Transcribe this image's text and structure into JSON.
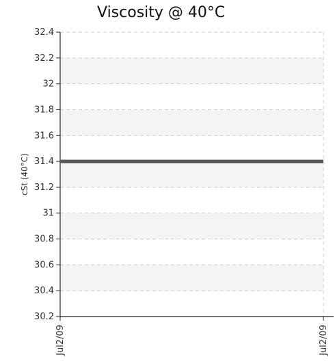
{
  "chart_data": {
    "type": "line",
    "title": "Viscosity @ 40°C",
    "xlabel": "",
    "ylabel": "cSt (40°C)",
    "ylim": [
      30.2,
      32.4
    ],
    "y_ticks": [
      "32.4",
      "32.2",
      "32",
      "31.8",
      "31.6",
      "31.4",
      "31.2",
      "31",
      "30.8",
      "30.6",
      "30.4",
      "30.2"
    ],
    "x_ticks": [
      "Jul2/09",
      "Jul2/09"
    ],
    "grid": true,
    "series": [
      {
        "x": [
          "Jul2/09",
          "Jul2/09"
        ],
        "values": [
          31.4,
          31.4
        ],
        "color": "#555555"
      }
    ]
  }
}
